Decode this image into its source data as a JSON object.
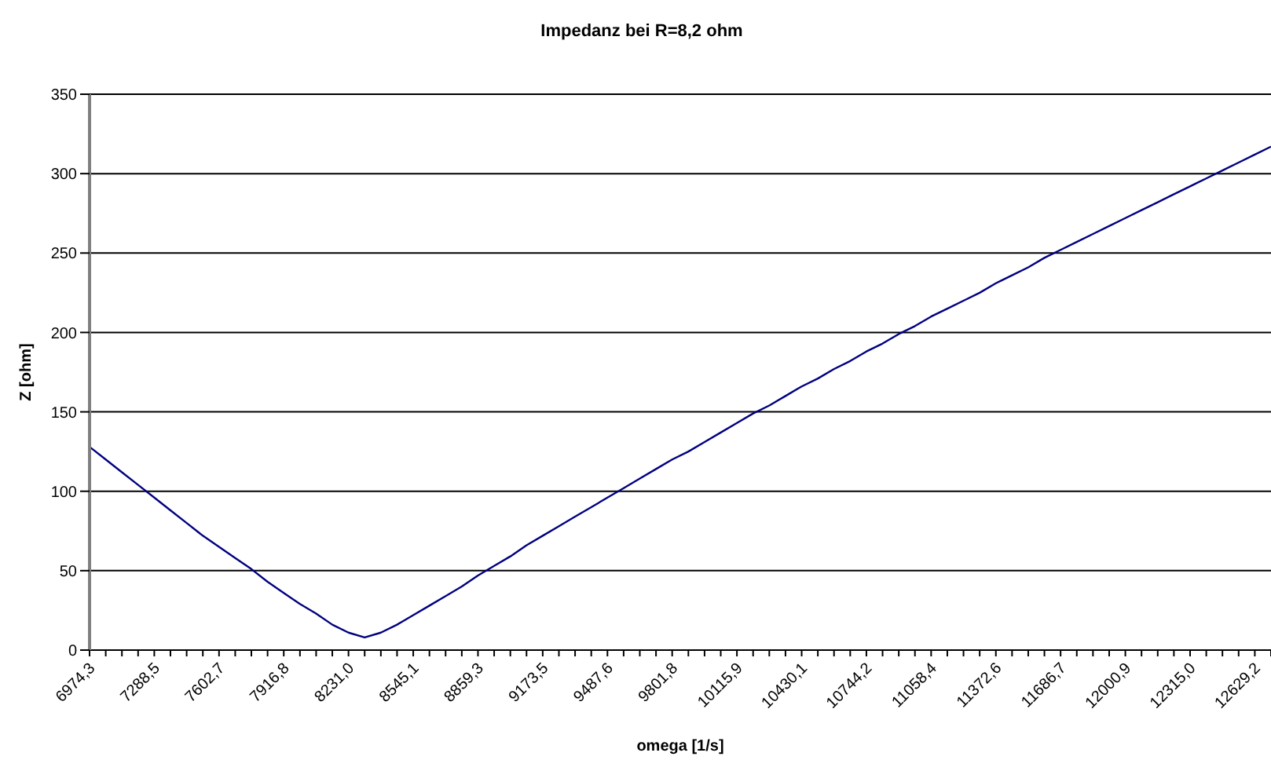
{
  "chart_data": {
    "type": "line",
    "title": "Impedanz bei R=8,2 ohm",
    "xlabel": "omega [1/s]",
    "ylabel": "Z [ohm]",
    "categories": [
      "6974,3",
      null,
      null,
      null,
      "7288,5",
      null,
      null,
      null,
      "7602,7",
      null,
      null,
      null,
      "7916,8",
      null,
      null,
      null,
      "8231,0",
      null,
      null,
      null,
      "8545,1",
      null,
      null,
      null,
      "8859,3",
      null,
      null,
      null,
      "9173,5",
      null,
      null,
      null,
      "9487,6",
      null,
      null,
      null,
      "9801,8",
      null,
      null,
      null,
      "10115,9",
      null,
      null,
      null,
      "10430,1",
      null,
      null,
      null,
      "10744,2",
      null,
      null,
      null,
      "11058,4",
      null,
      null,
      null,
      "11372,6",
      null,
      null,
      null,
      "11686,7",
      null,
      null,
      null,
      "12000,9",
      null,
      null,
      null,
      "12315,0",
      null,
      null,
      null,
      "12629,2",
      null
    ],
    "series": [
      {
        "color": "#000080",
        "values": [
          128,
          120,
          112,
          104,
          96,
          88,
          80,
          72,
          65,
          58,
          51,
          43,
          36,
          29,
          23,
          16,
          11,
          8,
          11,
          16,
          22,
          28,
          34,
          40,
          47,
          53,
          59,
          66,
          72,
          78,
          84,
          90,
          96,
          102,
          108,
          114,
          120,
          125,
          131,
          137,
          143,
          149,
          154,
          160,
          166,
          171,
          177,
          182,
          188,
          193,
          199,
          204,
          210,
          215,
          220,
          225,
          231,
          236,
          241,
          247,
          252,
          257,
          262,
          267,
          272,
          277,
          282,
          287,
          292,
          297,
          302,
          307,
          312,
          317
        ]
      }
    ],
    "ylim": [
      0,
      350
    ],
    "yticks": [
      0,
      50,
      100,
      150,
      200,
      250,
      300,
      350
    ],
    "grid": "y",
    "marker": "none",
    "line_style": "solid"
  }
}
